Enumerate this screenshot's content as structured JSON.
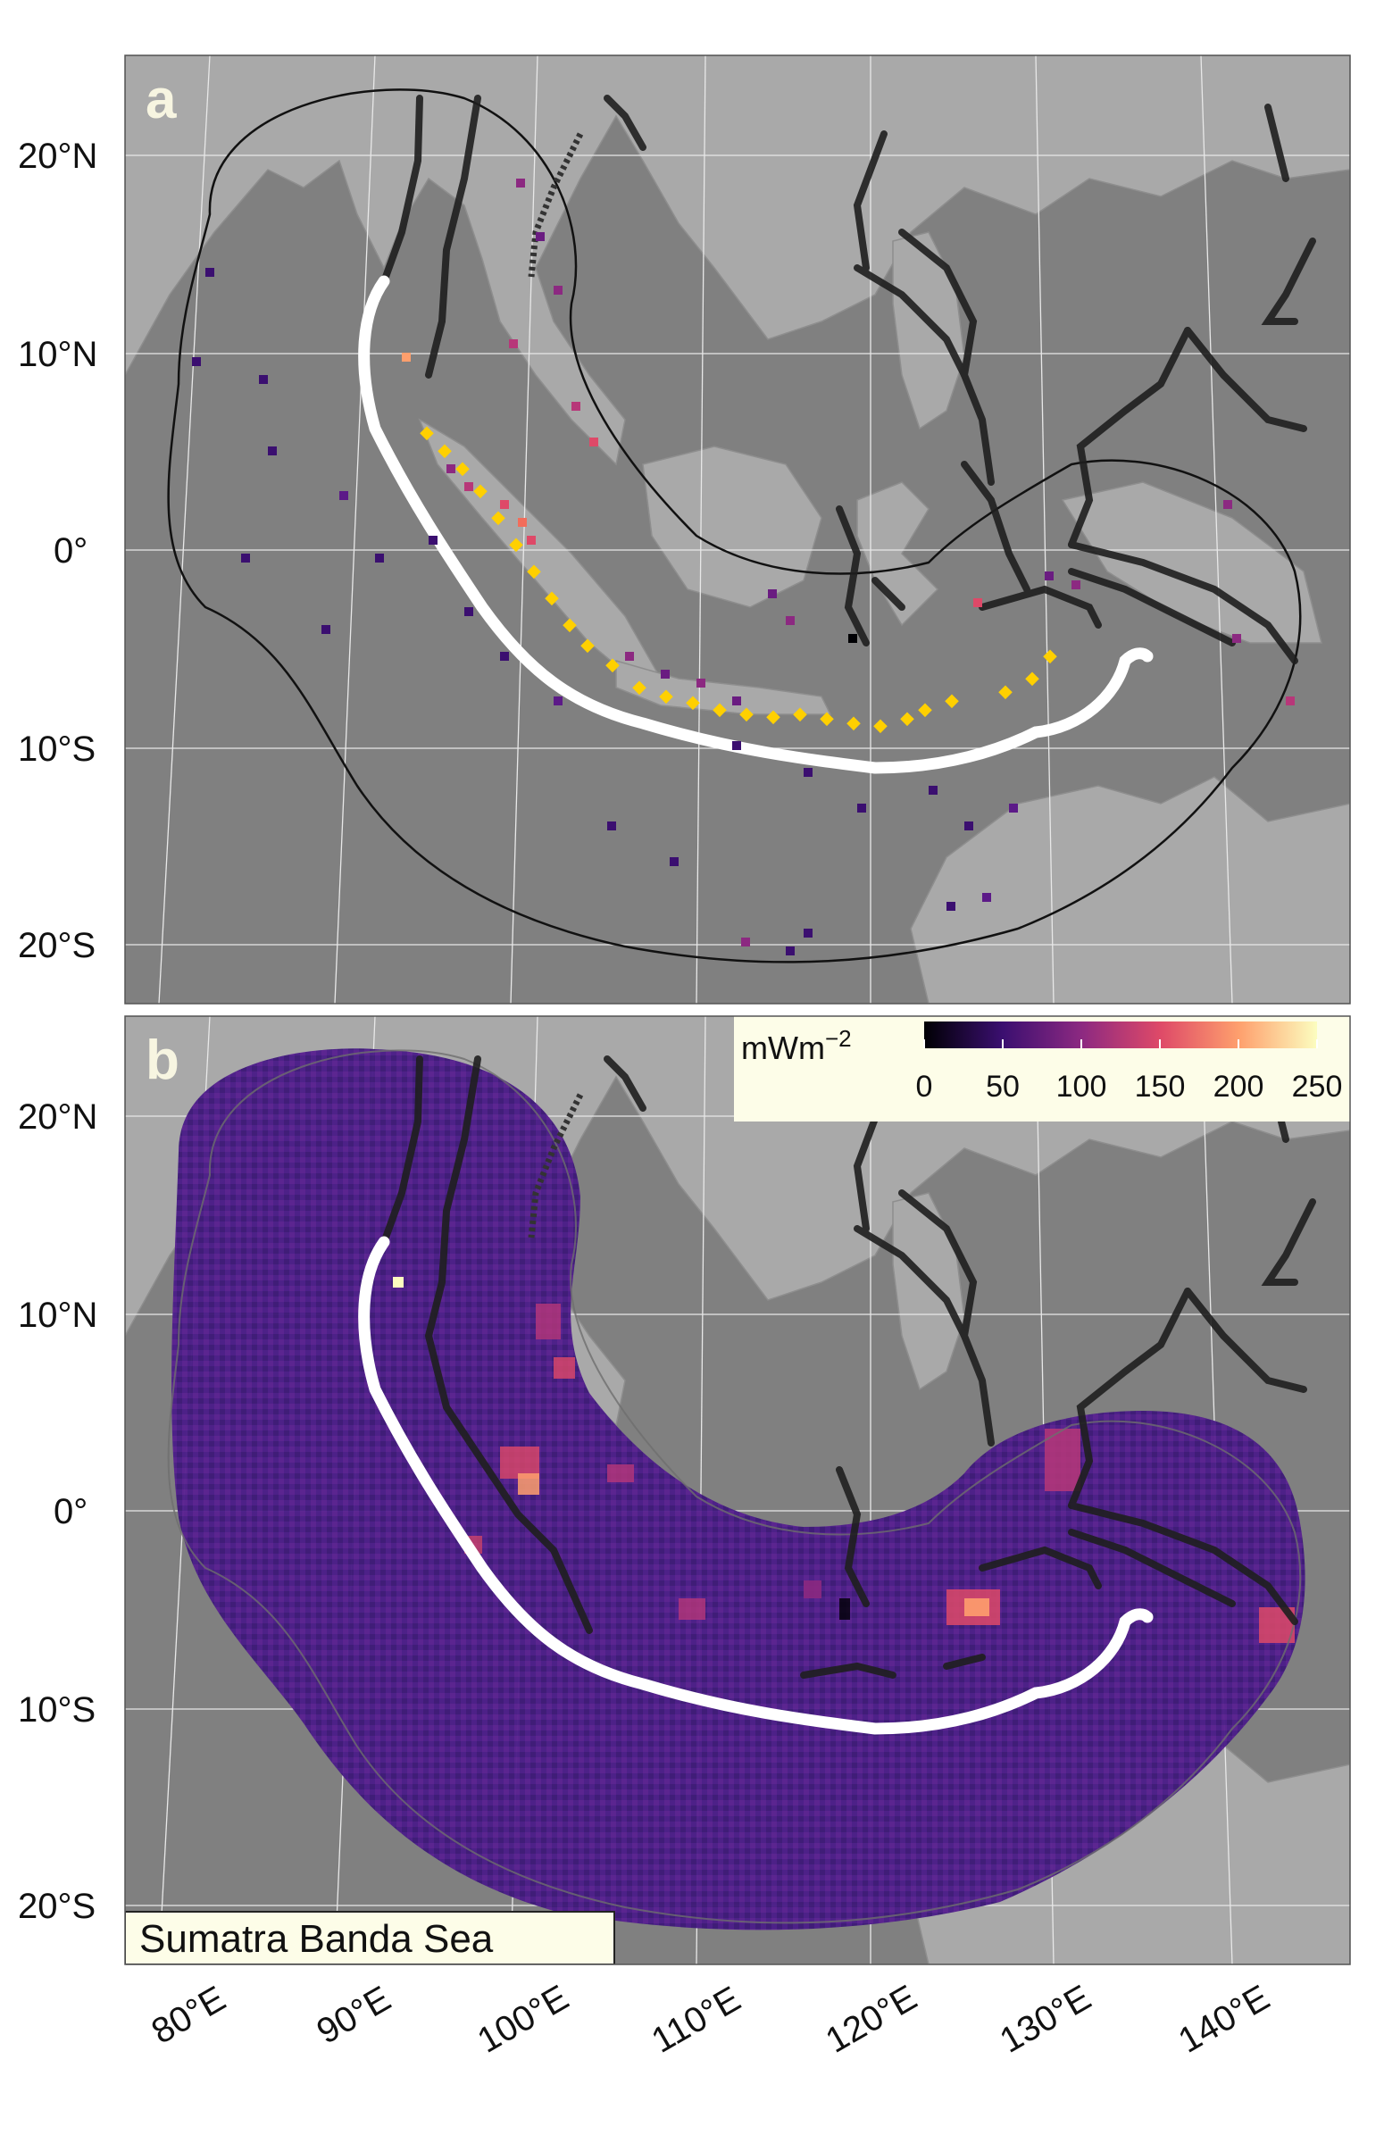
{
  "panels": [
    {
      "letter": "a"
    },
    {
      "letter": "b"
    }
  ],
  "lat_labels": [
    "20°N",
    "10°N",
    "0°",
    "10°S",
    "20°S"
  ],
  "lon_labels": [
    "80°E",
    "90°E",
    "100°E",
    "110°E",
    "120°E",
    "130°E",
    "140°E"
  ],
  "colorbar": {
    "unit": "mWm",
    "unit_exponent": "−2",
    "ticks": [
      "0",
      "50",
      "100",
      "150",
      "200",
      "250"
    ],
    "range": [
      0,
      250
    ],
    "palette": [
      "#000004",
      "#3b0f70",
      "#8c2981",
      "#de4968",
      "#fe9f6d",
      "#fcfdbf"
    ]
  },
  "region_label": "Sumatra Banda Sea",
  "colors": {
    "ocean": "#808080",
    "land": "#a8a8a8",
    "trench": "#ffffff",
    "faults": "#1a1a1a",
    "highlight_points": "#ffd000",
    "region_fill": "#4a1f86"
  }
}
